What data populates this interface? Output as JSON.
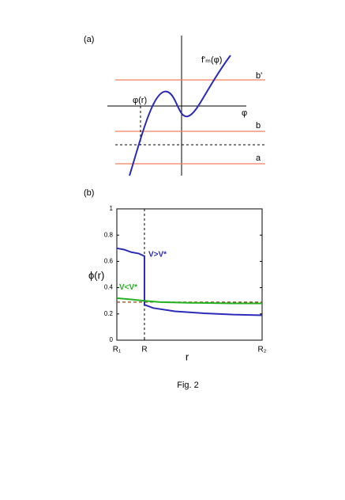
{
  "panel_a": {
    "label": "(a)",
    "curve_label": "f'ₘ(φ)",
    "line_b_prime": "b'",
    "phi_r": "φ(r)",
    "phi_axis": "φ",
    "line_b": "b",
    "line_a": "a"
  },
  "chart_data": {
    "type": "line",
    "panel_label": "(b)",
    "y_label": "ϕ(r)",
    "x_label": "r",
    "xlim": [
      0,
      1
    ],
    "xticks": [
      {
        "value": 0,
        "label": "R₁"
      },
      {
        "value": 0.19,
        "label": "R"
      },
      {
        "value": 1,
        "label": "R₂"
      }
    ],
    "ylim": [
      0,
      1
    ],
    "yticks": [
      0,
      0.2,
      0.4,
      0.6,
      0.8,
      1
    ],
    "reference_y": 0.29,
    "reference_color": "#8b4513",
    "series": [
      {
        "name": "V>V*",
        "color": "#2b2bb8",
        "x": [
          0,
          0.05,
          0.1,
          0.15,
          0.19,
          0.19,
          0.25,
          0.4,
          0.6,
          0.8,
          1
        ],
        "values": [
          0.7,
          0.69,
          0.67,
          0.66,
          0.64,
          0.27,
          0.245,
          0.22,
          0.205,
          0.195,
          0.19
        ]
      },
      {
        "name": "V<V*",
        "color": "#22b222",
        "x": [
          0,
          0.1,
          0.19,
          0.3,
          0.5,
          0.8,
          1
        ],
        "values": [
          0.32,
          0.31,
          0.3,
          0.29,
          0.285,
          0.28,
          0.28
        ]
      }
    ]
  },
  "caption": "Fig.   2"
}
